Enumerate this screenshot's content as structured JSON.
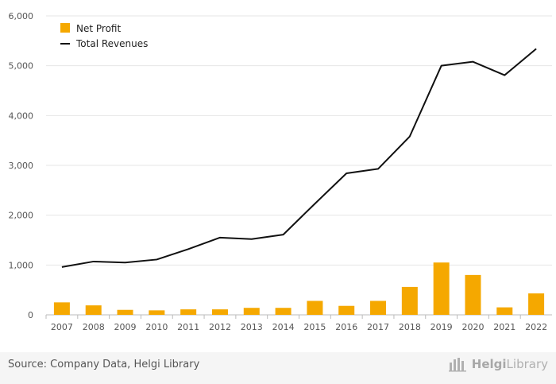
{
  "chart_data": {
    "type": "bar+line",
    "categories": [
      "2007",
      "2008",
      "2009",
      "2010",
      "2011",
      "2012",
      "2013",
      "2014",
      "2015",
      "2016",
      "2017",
      "2018",
      "2019",
      "2020",
      "2021",
      "2022"
    ],
    "series": [
      {
        "name": "Net Profit",
        "type": "bar",
        "color": "#F5A800",
        "values": [
          250,
          190,
          100,
          90,
          110,
          110,
          140,
          140,
          280,
          180,
          280,
          560,
          1050,
          800,
          150,
          430
        ]
      },
      {
        "name": "Total Revenues",
        "type": "line",
        "color": "#111111",
        "values": [
          960,
          1070,
          1050,
          1110,
          1320,
          1550,
          1520,
          1610,
          2230,
          2840,
          2930,
          3580,
          5000,
          5080,
          4810,
          5340
        ]
      }
    ],
    "yticks": [
      "0",
      "1,000",
      "2,000",
      "3,000",
      "4,000",
      "5,000",
      "6,000"
    ],
    "ylim": [
      0,
      6000
    ],
    "grid": true,
    "legend": "top-left"
  },
  "footer": {
    "source": "Source: Company Data, Helgi Library",
    "logo_prefix": "Helgi",
    "logo_suffix": "Library"
  }
}
